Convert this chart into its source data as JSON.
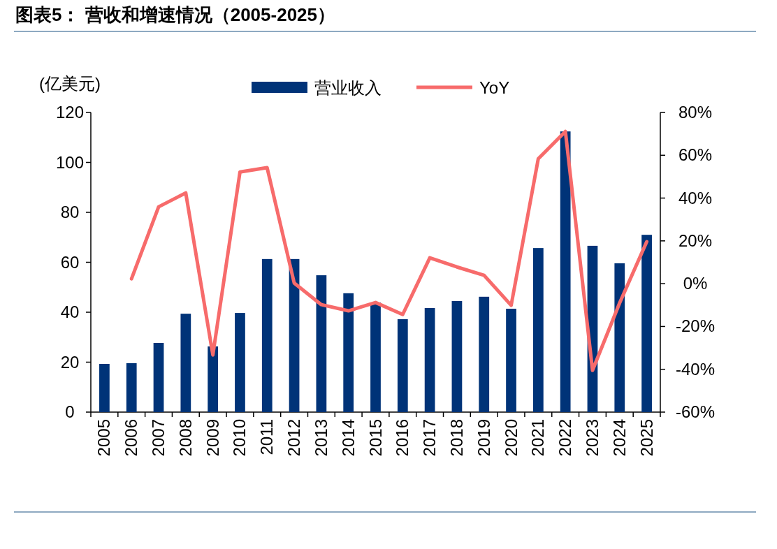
{
  "chart_data": {
    "type": "bar",
    "title": "图表5： 营收和增速情况（2005-2025）",
    "ylabel": "(亿美元)",
    "categories": [
      "2005",
      "2006",
      "2007",
      "2008",
      "2009",
      "2010",
      "2011",
      "2012",
      "2013",
      "2014",
      "2015",
      "2016",
      "2017",
      "2018",
      "2019",
      "2020",
      "2021",
      "2022",
      "2023",
      "2024",
      "2025"
    ],
    "series": [
      {
        "name": "营业收入",
        "color": "#003378",
        "values": [
          19.3,
          19.6,
          27.7,
          39.4,
          26.3,
          39.7,
          61.3,
          61.3,
          54.8,
          47.6,
          43.9,
          37.2,
          41.7,
          44.5,
          46.2,
          41.4,
          65.7,
          112.4,
          66.6,
          59.6,
          71.0
        ]
      },
      {
        "name": "YoY",
        "type": "line",
        "axis": "y2",
        "color": "#f76b6b",
        "values": [
          null,
          2.3,
          35.9,
          42.4,
          -33.3,
          52.2,
          54.2,
          0.3,
          -9.8,
          -12.7,
          -8.8,
          -14.4,
          12.1,
          7.8,
          3.9,
          -10.1,
          58.4,
          71.1,
          -40.5,
          -9,
          19.6
        ]
      }
    ],
    "ylim": [
      0,
      120
    ],
    "yticks": [
      0,
      20,
      40,
      60,
      80,
      100,
      120
    ],
    "y2lim": [
      -60,
      80
    ],
    "y2ticks": [
      {
        "value": -60,
        "label": "-60%"
      },
      {
        "value": -40,
        "label": "-40%"
      },
      {
        "value": -20,
        "label": "-20%"
      },
      {
        "value": 0,
        "label": "0%"
      },
      {
        "value": 20,
        "label": "20%"
      },
      {
        "value": 40,
        "label": "40%"
      },
      {
        "value": 60,
        "label": "60%"
      },
      {
        "value": 80,
        "label": "80%"
      }
    ],
    "legend": "top"
  }
}
